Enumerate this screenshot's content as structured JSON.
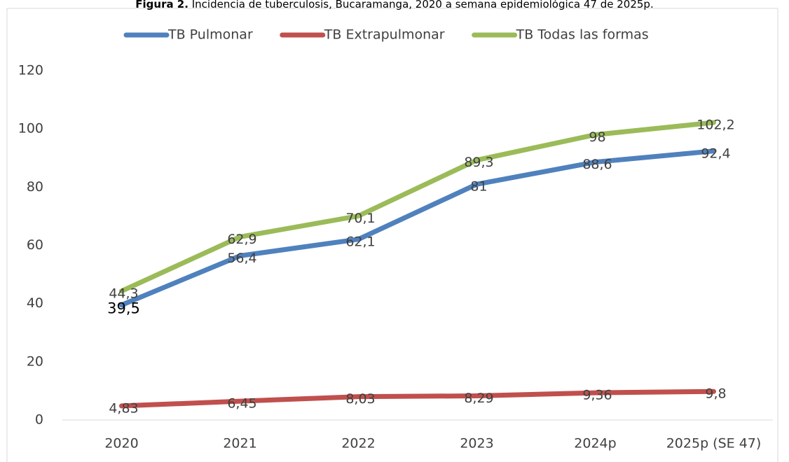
{
  "chart_data": {
    "type": "line",
    "title_label": "Figura 2.",
    "title": "Incidencia de tuberculosis, Bucaramanga, 2020 a semana epidemiológica 47 de 2025p.",
    "categories": [
      "2020",
      "2021",
      "2022",
      "2023",
      "2024p",
      "2025p (SE 47)"
    ],
    "series": [
      {
        "name": "TB Pulmonar",
        "color": "#4f81bd",
        "values": [
          39.5,
          56.4,
          62.1,
          81,
          88.6,
          92.4
        ],
        "value_labels": [
          "39,5",
          "56,4",
          "62,1",
          "81",
          "88,6",
          "92,4"
        ]
      },
      {
        "name": "TB Extrapulmonar",
        "color": "#c0504d",
        "values": [
          4.83,
          6.45,
          8.03,
          8.29,
          9.36,
          9.8
        ],
        "value_labels": [
          "4,83",
          "6,45",
          "8,03",
          "8,29",
          "9,36",
          "9,8"
        ]
      },
      {
        "name": "TB Todas las formas",
        "color": "#9bbb59",
        "values": [
          44.3,
          62.9,
          70.1,
          89.3,
          98,
          102.2
        ],
        "value_labels": [
          "44,3",
          "62,9",
          "70,1",
          "89,3",
          "98",
          "102,2"
        ]
      }
    ],
    "ylim": [
      0,
      120
    ],
    "yticks": [
      0,
      20,
      40,
      60,
      80,
      100,
      120
    ],
    "legend": "top"
  }
}
